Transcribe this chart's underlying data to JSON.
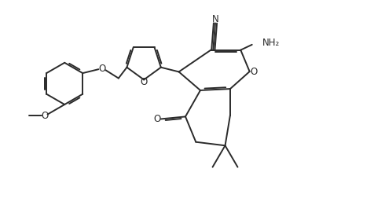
{
  "bg_color": "#ffffff",
  "line_color": "#2a2a2a",
  "line_width": 1.4,
  "dbo": 0.055,
  "figsize": [
    4.76,
    2.66
  ],
  "dpi": 100,
  "xlim": [
    0.0,
    11.8
  ],
  "ylim": [
    0.0,
    7.0
  ]
}
